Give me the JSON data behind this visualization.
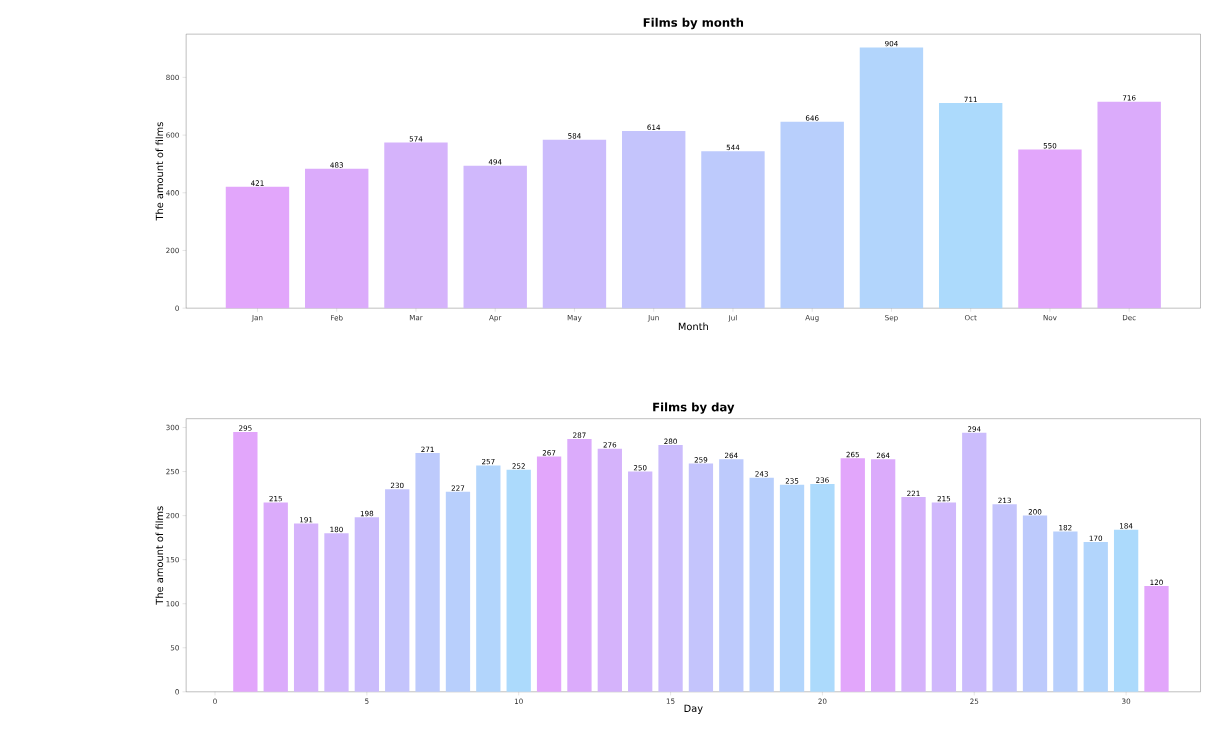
{
  "chart_data": [
    {
      "type": "bar",
      "title": "Films by month",
      "xlabel": "Month",
      "ylabel": "The amount of films",
      "categories": [
        "Jan",
        "Feb",
        "Mar",
        "Apr",
        "May",
        "Jun",
        "Jul",
        "Aug",
        "Sep",
        "Oct",
        "Nov",
        "Dec"
      ],
      "values": [
        421,
        483,
        574,
        494,
        584,
        614,
        544,
        646,
        904,
        711,
        550,
        716
      ],
      "colors": [
        "#e2a6fb",
        "#dbabfb",
        "#d5b3fb",
        "#d0b8fc",
        "#cbbcfc",
        "#c4c4fc",
        "#bdcafc",
        "#b8cffc",
        "#b2d5fc",
        "#acdafc",
        "#e2a6fb",
        "#dbabfb"
      ],
      "ylim": [
        0,
        950
      ],
      "yticks": [
        0,
        200,
        400,
        600,
        800
      ],
      "data_labels": true
    },
    {
      "type": "bar",
      "title": "Films by day",
      "xlabel": "Day",
      "ylabel": "The amount of films",
      "x": [
        1,
        2,
        3,
        4,
        5,
        6,
        7,
        8,
        9,
        10,
        11,
        12,
        13,
        14,
        15,
        16,
        17,
        18,
        19,
        20,
        21,
        22,
        23,
        24,
        25,
        26,
        27,
        28,
        29,
        30,
        31
      ],
      "values": [
        295,
        215,
        191,
        180,
        198,
        230,
        271,
        227,
        257,
        252,
        267,
        287,
        276,
        250,
        280,
        259,
        264,
        243,
        235,
        236,
        265,
        264,
        221,
        215,
        294,
        213,
        200,
        182,
        170,
        184,
        120
      ],
      "colors": [
        "#e2a6fb",
        "#dbabfb",
        "#d5b3fb",
        "#d0b8fc",
        "#cbbcfc",
        "#c4c4fc",
        "#bdcafc",
        "#b8cffc",
        "#b2d5fc",
        "#acdafc",
        "#e2a6fb",
        "#dbabfb",
        "#d5b3fb",
        "#d0b8fc",
        "#cbbcfc",
        "#c4c4fc",
        "#bdcafc",
        "#b8cffc",
        "#b2d5fc",
        "#acdafc",
        "#e2a6fb",
        "#dbabfb",
        "#d5b3fb",
        "#d0b8fc",
        "#cbbcfc",
        "#c4c4fc",
        "#bdcafc",
        "#b8cffc",
        "#b2d5fc",
        "#acdafc",
        "#e2a6fb"
      ],
      "xlim": [
        -0.95,
        32.45
      ],
      "xticks": [
        0,
        5,
        10,
        15,
        20,
        25,
        30
      ],
      "ylim": [
        0,
        310
      ],
      "yticks": [
        0,
        50,
        100,
        150,
        200,
        250,
        300
      ],
      "data_labels": true
    }
  ]
}
